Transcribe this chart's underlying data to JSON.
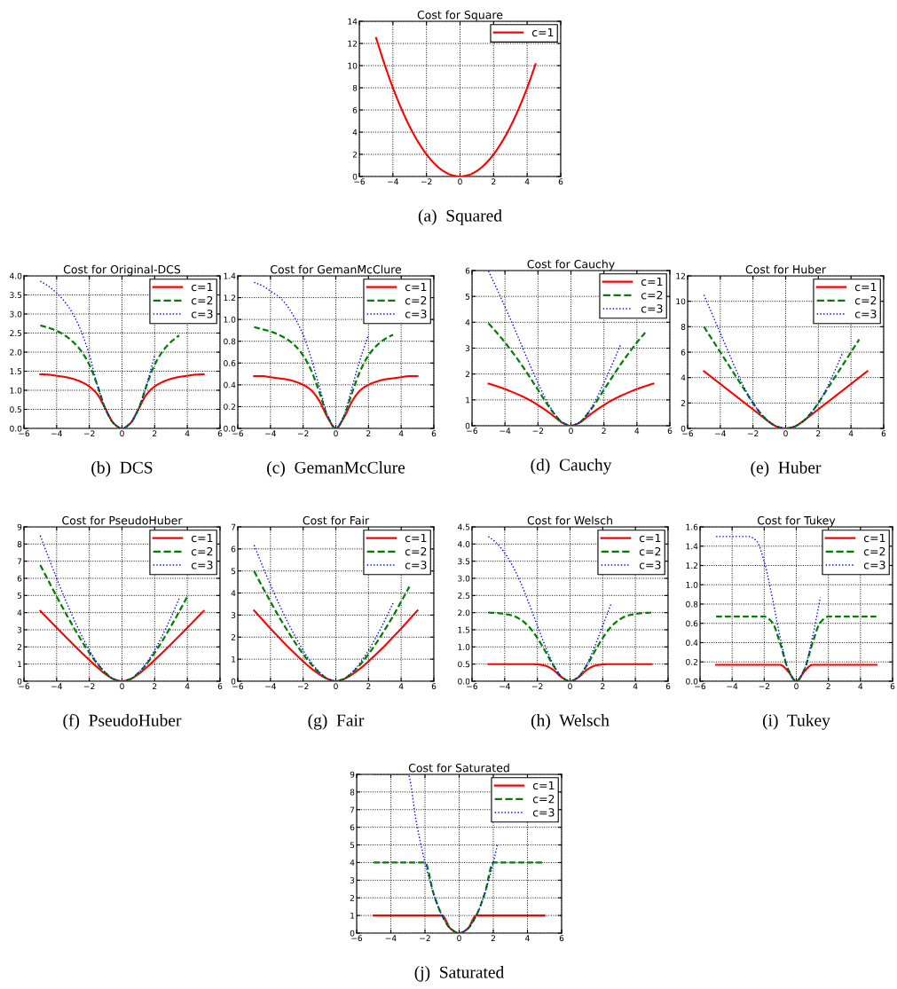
{
  "chart_data": [
    {
      "type": "line",
      "title": "Cost for Square",
      "x": [
        -5,
        -4.5,
        -4,
        -3.5,
        -3,
        -2.5,
        -2,
        -1.5,
        -1,
        -0.5,
        0,
        0.5,
        1,
        1.5,
        2,
        2.5,
        3,
        3.5,
        4,
        4.5
      ],
      "xlim": [
        -6,
        6
      ],
      "ylim": [
        0,
        14
      ],
      "xticks": [
        {
          "value": -6,
          "label": "−6"
        },
        {
          "value": -4,
          "label": "−4"
        },
        {
          "value": -2,
          "label": "−2"
        },
        0,
        2,
        4,
        6
      ],
      "yticks": [
        0,
        2,
        4,
        6,
        8,
        10,
        12,
        14
      ],
      "grid": true,
      "legend": "top right",
      "annotations": [
        "(a)  Squared"
      ],
      "series": [
        {
          "name": "c=1",
          "color": "#ff0000",
          "line_style": "solid",
          "values": [
            12.5,
            10.13,
            8,
            6.13,
            4.5,
            3.13,
            2,
            1.13,
            0.5,
            0.13,
            0,
            0.13,
            0.5,
            1.13,
            2,
            3.13,
            4.5,
            6.13,
            8,
            10.13
          ]
        }
      ]
    },
    {
      "type": "line",
      "title": "Cost for Original-DCS",
      "x": [
        -5,
        -4.5,
        -4,
        -3.5,
        -3,
        -2.5,
        -2,
        -1.5,
        -1,
        -0.5,
        0,
        0.5,
        1,
        1.5,
        2,
        2.5,
        3,
        3.5,
        4,
        4.5,
        5
      ],
      "xlim": [
        -6,
        6
      ],
      "ylim": [
        0,
        4
      ],
      "xticks": [
        {
          "value": -6,
          "label": "−6"
        },
        {
          "value": -4,
          "label": "−4"
        },
        {
          "value": -2,
          "label": "−2"
        },
        0,
        2,
        4,
        6
      ],
      "yticks": [
        {
          "value": 0,
          "label": "0.0"
        },
        0.5,
        {
          "value": 1,
          "label": "1.0"
        },
        1.5,
        {
          "value": 2,
          "label": "2.0"
        },
        2.5,
        {
          "value": 3,
          "label": "3.0"
        },
        3.5,
        {
          "value": 4,
          "label": "4.0"
        }
      ],
      "grid": true,
      "legend": "top right",
      "annotations": [
        "(b)  DCS"
      ],
      "series": [
        {
          "name": "c=1",
          "color": "#ff0000",
          "line_style": "solid",
          "values": [
            1.42,
            1.41,
            1.38,
            1.35,
            1.3,
            1.22,
            1.1,
            0.89,
            0.5,
            0.13,
            0,
            0.13,
            0.5,
            0.89,
            1.1,
            1.22,
            1.3,
            1.35,
            1.38,
            1.41,
            1.42
          ]
        },
        {
          "name": "c=2",
          "color": "#008000",
          "line_style": "dashed",
          "values": [
            2.7,
            2.64,
            2.56,
            2.44,
            2.27,
            2.03,
            1.67,
            1.12,
            0.5,
            0.13,
            0,
            0.13,
            0.5,
            1.12,
            1.67,
            2.03,
            2.27,
            2.44,
            null,
            null,
            null
          ]
        },
        {
          "name": "c=3",
          "color": "#0000ff",
          "line_style": "dotted",
          "values": [
            3.86,
            3.73,
            3.55,
            3.32,
            3.0,
            2.55,
            1.93,
            1.13,
            0.5,
            0.13,
            0,
            0.13,
            0.5,
            1.13,
            1.93,
            null,
            null,
            null,
            null,
            null,
            null
          ]
        }
      ]
    },
    {
      "type": "line",
      "title": "Cost for GemanMcClure",
      "x": [
        -5,
        -4.5,
        -4,
        -3.5,
        -3,
        -2.5,
        -2,
        -1.5,
        -1,
        -0.5,
        0,
        0.5,
        1,
        1.5,
        2,
        2.5,
        3,
        3.5,
        4,
        4.5,
        5
      ],
      "xlim": [
        -6,
        6
      ],
      "ylim": [
        0,
        1.4
      ],
      "xticks": [
        {
          "value": -6,
          "label": "−6"
        },
        {
          "value": -4,
          "label": "−4"
        },
        {
          "value": -2,
          "label": "−2"
        },
        0,
        2,
        4,
        6
      ],
      "yticks": [
        {
          "value": 0,
          "label": "0.0"
        },
        0.2,
        0.4,
        0.6,
        0.8,
        {
          "value": 1,
          "label": "1.0"
        },
        1.2,
        1.4
      ],
      "grid": true,
      "legend": "top right",
      "annotations": [
        "(c)  GemanMcClure"
      ],
      "series": [
        {
          "name": "c=1",
          "color": "#ff0000",
          "line_style": "solid",
          "values": [
            0.48,
            0.48,
            0.47,
            0.46,
            0.45,
            0.43,
            0.4,
            0.35,
            0.25,
            0.1,
            0,
            0.1,
            0.25,
            0.35,
            0.4,
            0.43,
            0.45,
            0.46,
            0.47,
            0.48,
            0.48
          ]
        },
        {
          "name": "c=2",
          "color": "#008000",
          "line_style": "dashed",
          "values": [
            0.93,
            0.91,
            0.89,
            0.86,
            0.82,
            0.76,
            0.67,
            0.53,
            0.33,
            0.11,
            0,
            0.11,
            0.33,
            0.53,
            0.67,
            0.76,
            0.82,
            0.86,
            null,
            null,
            null
          ]
        },
        {
          "name": "c=3",
          "color": "#0000ff",
          "line_style": "dotted",
          "values": [
            1.34,
            1.31,
            1.26,
            1.21,
            1.13,
            1.01,
            0.86,
            0.64,
            0.38,
            0.12,
            0,
            0.12,
            0.38,
            0.64,
            0.86,
            null,
            null,
            null,
            null,
            null,
            null
          ]
        }
      ]
    },
    {
      "type": "line",
      "title": "Cost for Cauchy",
      "x": [
        -5,
        -4.5,
        -4,
        -3.5,
        -3,
        -2.5,
        -2,
        -1.5,
        -1,
        -0.5,
        0,
        0.5,
        1,
        1.5,
        2,
        2.5,
        3,
        3.5,
        4,
        4.5,
        5
      ],
      "xlim": [
        -6,
        6
      ],
      "ylim": [
        0,
        6
      ],
      "xticks": [
        {
          "value": -6,
          "label": "−6"
        },
        {
          "value": -4,
          "label": "−4"
        },
        {
          "value": -2,
          "label": "−2"
        },
        0,
        2,
        4,
        6
      ],
      "yticks": [
        0,
        1,
        2,
        3,
        4,
        5,
        6
      ],
      "grid": true,
      "legend": "top right",
      "annotations": [
        "(d)  Cauchy"
      ],
      "series": [
        {
          "name": "c=1",
          "color": "#ff0000",
          "line_style": "solid",
          "values": [
            1.63,
            1.53,
            1.42,
            1.29,
            1.15,
            0.99,
            0.8,
            0.59,
            0.35,
            0.11,
            0,
            0.11,
            0.35,
            0.59,
            0.8,
            0.99,
            1.15,
            1.29,
            1.42,
            1.53,
            1.63
          ]
        },
        {
          "name": "c=2",
          "color": "#008000",
          "line_style": "dashed",
          "values": [
            3.96,
            3.6,
            3.22,
            2.8,
            2.36,
            1.88,
            1.39,
            0.89,
            0.45,
            0.12,
            0,
            0.12,
            0.45,
            0.89,
            1.39,
            1.88,
            2.36,
            2.8,
            3.22,
            3.6,
            null
          ]
        },
        {
          "name": "c=3",
          "color": "#0000ff",
          "line_style": "dotted",
          "values": [
            5.98,
            5.3,
            4.6,
            3.87,
            3.12,
            2.37,
            1.66,
            1.0,
            0.47,
            0.12,
            0,
            0.12,
            0.47,
            1.0,
            1.66,
            2.37,
            3.12,
            null,
            null,
            null,
            null
          ]
        }
      ]
    },
    {
      "type": "line",
      "title": "Cost for Huber",
      "x": [
        -5,
        -4.5,
        -4,
        -3.5,
        -3,
        -2.5,
        -2,
        -1.5,
        -1,
        -0.5,
        0,
        0.5,
        1,
        1.5,
        2,
        2.5,
        3,
        3.5,
        4,
        4.5,
        5
      ],
      "xlim": [
        -6,
        6
      ],
      "ylim": [
        0,
        12
      ],
      "xticks": [
        {
          "value": -6,
          "label": "−6"
        },
        {
          "value": -4,
          "label": "−4"
        },
        {
          "value": -2,
          "label": "−2"
        },
        0,
        2,
        4,
        6
      ],
      "yticks": [
        0,
        2,
        4,
        6,
        8,
        10,
        12
      ],
      "grid": true,
      "legend": "top right",
      "annotations": [
        "(e)  Huber"
      ],
      "series": [
        {
          "name": "c=1",
          "color": "#ff0000",
          "line_style": "solid",
          "values": [
            4.5,
            4,
            3.5,
            3,
            2.5,
            2,
            1.5,
            1,
            0.5,
            0.13,
            0,
            0.13,
            0.5,
            1,
            1.5,
            2,
            2.5,
            3,
            3.5,
            4,
            4.5
          ]
        },
        {
          "name": "c=2",
          "color": "#008000",
          "line_style": "dashed",
          "values": [
            8,
            7,
            6,
            5,
            4,
            3,
            2,
            1.13,
            0.5,
            0.13,
            0,
            0.13,
            0.5,
            1.13,
            2,
            3,
            4,
            5,
            6,
            7,
            null
          ]
        },
        {
          "name": "c=3",
          "color": "#0000ff",
          "line_style": "dotted",
          "values": [
            10.5,
            9,
            7.5,
            6,
            4.5,
            3.13,
            2,
            1.13,
            0.5,
            0.13,
            0,
            0.13,
            0.5,
            1.13,
            2,
            3.13,
            4.5,
            6,
            null,
            null,
            null
          ]
        }
      ]
    },
    {
      "type": "line",
      "title": "Cost for PseudoHuber",
      "x": [
        -5,
        -4.5,
        -4,
        -3.5,
        -3,
        -2.5,
        -2,
        -1.5,
        -1,
        -0.5,
        0,
        0.5,
        1,
        1.5,
        2,
        2.5,
        3,
        3.5,
        4,
        4.5,
        5
      ],
      "xlim": [
        -6,
        6
      ],
      "ylim": [
        0,
        9
      ],
      "xticks": [
        {
          "value": -6,
          "label": "−6"
        },
        {
          "value": -4,
          "label": "−4"
        },
        {
          "value": -2,
          "label": "−2"
        },
        0,
        2,
        4,
        6
      ],
      "yticks": [
        0,
        1,
        2,
        3,
        4,
        5,
        6,
        7,
        8,
        9
      ],
      "grid": true,
      "legend": "top right",
      "annotations": [
        "(f)  PseudoHuber"
      ],
      "series": [
        {
          "name": "c=1",
          "color": "#ff0000",
          "line_style": "solid",
          "values": [
            4.1,
            3.61,
            3.12,
            2.64,
            2.16,
            1.69,
            1.24,
            0.8,
            0.41,
            0.12,
            0,
            0.12,
            0.41,
            0.8,
            1.24,
            1.69,
            2.16,
            2.64,
            3.12,
            3.61,
            4.1
          ]
        },
        {
          "name": "c=2",
          "color": "#008000",
          "line_style": "dashed",
          "values": [
            6.77,
            5.85,
            4.94,
            4.06,
            3.21,
            2.4,
            1.66,
            1,
            0.47,
            0.12,
            0,
            0.12,
            0.47,
            1,
            1.66,
            2.4,
            3.21,
            4.06,
            4.94,
            null,
            null
          ]
        },
        {
          "name": "c=3",
          "color": "#0000ff",
          "line_style": "dotted",
          "values": [
            8.49,
            7.23,
            6,
            4.83,
            3.73,
            2.72,
            1.82,
            1.06,
            0.49,
            0.12,
            0,
            0.12,
            0.49,
            1.06,
            1.82,
            2.72,
            3.73,
            4.83,
            null,
            null,
            null
          ]
        }
      ]
    },
    {
      "type": "line",
      "title": "Cost for Fair",
      "x": [
        -5,
        -4.5,
        -4,
        -3.5,
        -3,
        -2.5,
        -2,
        -1.5,
        -1,
        -0.5,
        0,
        0.5,
        1,
        1.5,
        2,
        2.5,
        3,
        3.5,
        4,
        4.5,
        5
      ],
      "xlim": [
        -6,
        6
      ],
      "ylim": [
        0,
        7
      ],
      "xticks": [
        {
          "value": -6,
          "label": "−6"
        },
        {
          "value": -4,
          "label": "−4"
        },
        {
          "value": -2,
          "label": "−2"
        },
        0,
        2,
        4,
        6
      ],
      "yticks": [
        0,
        1,
        2,
        3,
        4,
        5,
        6,
        7
      ],
      "grid": true,
      "legend": "top right",
      "annotations": [
        "(g)  Fair"
      ],
      "series": [
        {
          "name": "c=1",
          "color": "#ff0000",
          "line_style": "solid",
          "values": [
            3.21,
            2.8,
            2.39,
            2,
            1.61,
            1.25,
            0.9,
            0.58,
            0.31,
            0.1,
            0,
            0.1,
            0.31,
            0.58,
            0.9,
            1.25,
            1.61,
            2,
            2.39,
            2.8,
            3.21
          ]
        },
        {
          "name": "c=2",
          "color": "#008000",
          "line_style": "dashed",
          "values": [
            4.99,
            4.29,
            3.61,
            2.95,
            2.34,
            1.76,
            1.23,
            0.76,
            0.38,
            0.11,
            0,
            0.11,
            0.38,
            0.76,
            1.23,
            1.76,
            2.34,
            2.95,
            3.61,
            4.29,
            null
          ]
        },
        {
          "name": "c=3",
          "color": "#0000ff",
          "line_style": "dotted",
          "values": [
            6.17,
            5.25,
            4.37,
            3.54,
            2.76,
            2.05,
            1.4,
            0.85,
            0.41,
            0.11,
            0,
            0.11,
            0.41,
            0.85,
            1.4,
            2.05,
            2.76,
            3.54,
            null,
            null,
            null
          ]
        }
      ]
    },
    {
      "type": "line",
      "title": "Cost for Welsch",
      "x": [
        -5,
        -4.5,
        -4,
        -3.5,
        -3,
        -2.5,
        -2,
        -1.5,
        -1,
        -0.5,
        0,
        0.5,
        1,
        1.5,
        2,
        2.5,
        3,
        3.5,
        4,
        4.5,
        5
      ],
      "xlim": [
        -6,
        6
      ],
      "ylim": [
        0,
        4.5
      ],
      "xticks": [
        {
          "value": -6,
          "label": "−6"
        },
        {
          "value": -4,
          "label": "−4"
        },
        {
          "value": -2,
          "label": "−2"
        },
        0,
        2,
        4,
        6
      ],
      "yticks": [
        {
          "value": 0,
          "label": "0.0"
        },
        0.5,
        {
          "value": 1,
          "label": "1.0"
        },
        1.5,
        {
          "value": 2,
          "label": "2.0"
        },
        2.5,
        {
          "value": 3,
          "label": "3.0"
        },
        3.5,
        {
          "value": 4,
          "label": "4.0"
        },
        4.5
      ],
      "grid": true,
      "legend": "top right",
      "annotations": [
        "(h)  Welsch"
      ],
      "series": [
        {
          "name": "c=1",
          "color": "#ff0000",
          "line_style": "solid",
          "values": [
            0.5,
            0.5,
            0.5,
            0.5,
            0.5,
            0.5,
            0.49,
            0.45,
            0.32,
            0.11,
            0,
            0.11,
            0.32,
            0.45,
            0.49,
            0.5,
            0.5,
            0.5,
            0.5,
            0.5,
            0.5
          ]
        },
        {
          "name": "c=2",
          "color": "#008000",
          "line_style": "dashed",
          "values": [
            2,
            1.99,
            1.96,
            1.91,
            1.79,
            1.58,
            1.26,
            0.86,
            0.44,
            0.12,
            0,
            0.12,
            0.44,
            0.86,
            1.26,
            1.58,
            1.79,
            1.91,
            1.96,
            1.99,
            2
          ]
        },
        {
          "name": "c=3",
          "color": "#0000ff",
          "line_style": "dotted",
          "values": [
            4.22,
            4.03,
            3.74,
            3.35,
            2.85,
            2.25,
            1.62,
            1,
            0.47,
            0.12,
            0,
            0.12,
            0.47,
            1,
            1.62,
            2.25,
            null,
            null,
            null,
            null,
            null
          ]
        }
      ]
    },
    {
      "type": "line",
      "title": "Cost for Tukey",
      "x": [
        -5,
        -4.5,
        -4,
        -3.5,
        -3,
        -2.5,
        -2,
        -1.5,
        -1,
        -0.5,
        0,
        0.5,
        1,
        1.5,
        2,
        2.5,
        3,
        3.5,
        4,
        4.5,
        5
      ],
      "xlim": [
        -6,
        6
      ],
      "ylim": [
        0,
        1.6
      ],
      "xticks": [
        {
          "value": -6,
          "label": "−6"
        },
        {
          "value": -4,
          "label": "−4"
        },
        {
          "value": -2,
          "label": "−2"
        },
        0,
        2,
        4,
        6
      ],
      "yticks": [
        {
          "value": 0,
          "label": "0.0"
        },
        0.2,
        0.4,
        0.6,
        0.8,
        {
          "value": 1,
          "label": "1.0"
        },
        1.2,
        1.4,
        1.6
      ],
      "grid": true,
      "legend": "top right",
      "annotations": [
        "(i)  Tukey"
      ],
      "series": [
        {
          "name": "c=1",
          "color": "#ff0000",
          "line_style": "solid",
          "values": [
            0.17,
            0.17,
            0.17,
            0.17,
            0.17,
            0.17,
            0.17,
            0.17,
            0.17,
            0.1,
            0,
            0.1,
            0.17,
            0.17,
            0.17,
            0.17,
            0.17,
            0.17,
            0.17,
            0.17,
            0.17
          ]
        },
        {
          "name": "c=2",
          "color": "#008000",
          "line_style": "dashed",
          "values": [
            0.67,
            0.67,
            0.67,
            0.67,
            0.67,
            0.67,
            0.67,
            0.61,
            0.39,
            0.12,
            0,
            0.12,
            0.39,
            0.61,
            0.67,
            0.67,
            0.67,
            0.67,
            0.67,
            0.67,
            0.67
          ]
        },
        {
          "name": "c=3",
          "color": "#0000ff",
          "line_style": "dotted",
          "values": [
            1.5,
            1.5,
            1.5,
            1.5,
            1.5,
            1.46,
            1.24,
            0.87,
            0.45,
            0.12,
            0,
            0.12,
            0.45,
            0.87,
            null,
            null,
            null,
            null,
            null,
            null,
            null
          ]
        }
      ]
    },
    {
      "type": "line",
      "title": "Cost for Saturated",
      "x": [
        -5,
        -4.5,
        -4,
        -3.5,
        -3,
        -2.5,
        -2,
        -1.5,
        -1,
        -0.5,
        0,
        0.5,
        1,
        1.5,
        2,
        2.5,
        3,
        3.5,
        4,
        4.5,
        5
      ],
      "xlim": [
        -6,
        6
      ],
      "ylim": [
        0,
        9
      ],
      "xticks": [
        {
          "value": -6,
          "label": "−6"
        },
        {
          "value": -4,
          "label": "−4"
        },
        {
          "value": -2,
          "label": "−2"
        },
        0,
        2,
        4,
        6
      ],
      "yticks": [
        0,
        1,
        2,
        3,
        4,
        5,
        6,
        7,
        8,
        9
      ],
      "grid": true,
      "legend": "top right",
      "annotations": [
        "(j)  Saturated"
      ],
      "series": [
        {
          "name": "c=1",
          "color": "#ff0000",
          "line_style": "solid",
          "values": [
            1,
            1,
            1,
            1,
            1,
            1,
            1,
            1,
            1,
            0.25,
            0,
            0.25,
            1,
            1,
            1,
            1,
            1,
            1,
            1,
            1,
            1
          ]
        },
        {
          "name": "c=2",
          "color": "#008000",
          "line_style": "dashed",
          "values": [
            4,
            4,
            4,
            4,
            4,
            4,
            4,
            2.25,
            1,
            0.25,
            0,
            0.25,
            1,
            2.25,
            4,
            4,
            4,
            4,
            4,
            4,
            4
          ]
        },
        {
          "name": "c=3",
          "color": "#0000ff",
          "line_style": "dotted",
          "x": [
            -5,
            -4.5,
            -4,
            -3.5,
            -3,
            -2.5,
            -2,
            -1.5,
            -1,
            -0.5,
            0,
            0.5,
            1,
            1.5,
            2,
            2.25
          ],
          "values": [
            9,
            9,
            9,
            9,
            9,
            6.25,
            4,
            2.25,
            1,
            0.25,
            0,
            0.25,
            1,
            2.25,
            4,
            5.06
          ]
        }
      ]
    }
  ]
}
